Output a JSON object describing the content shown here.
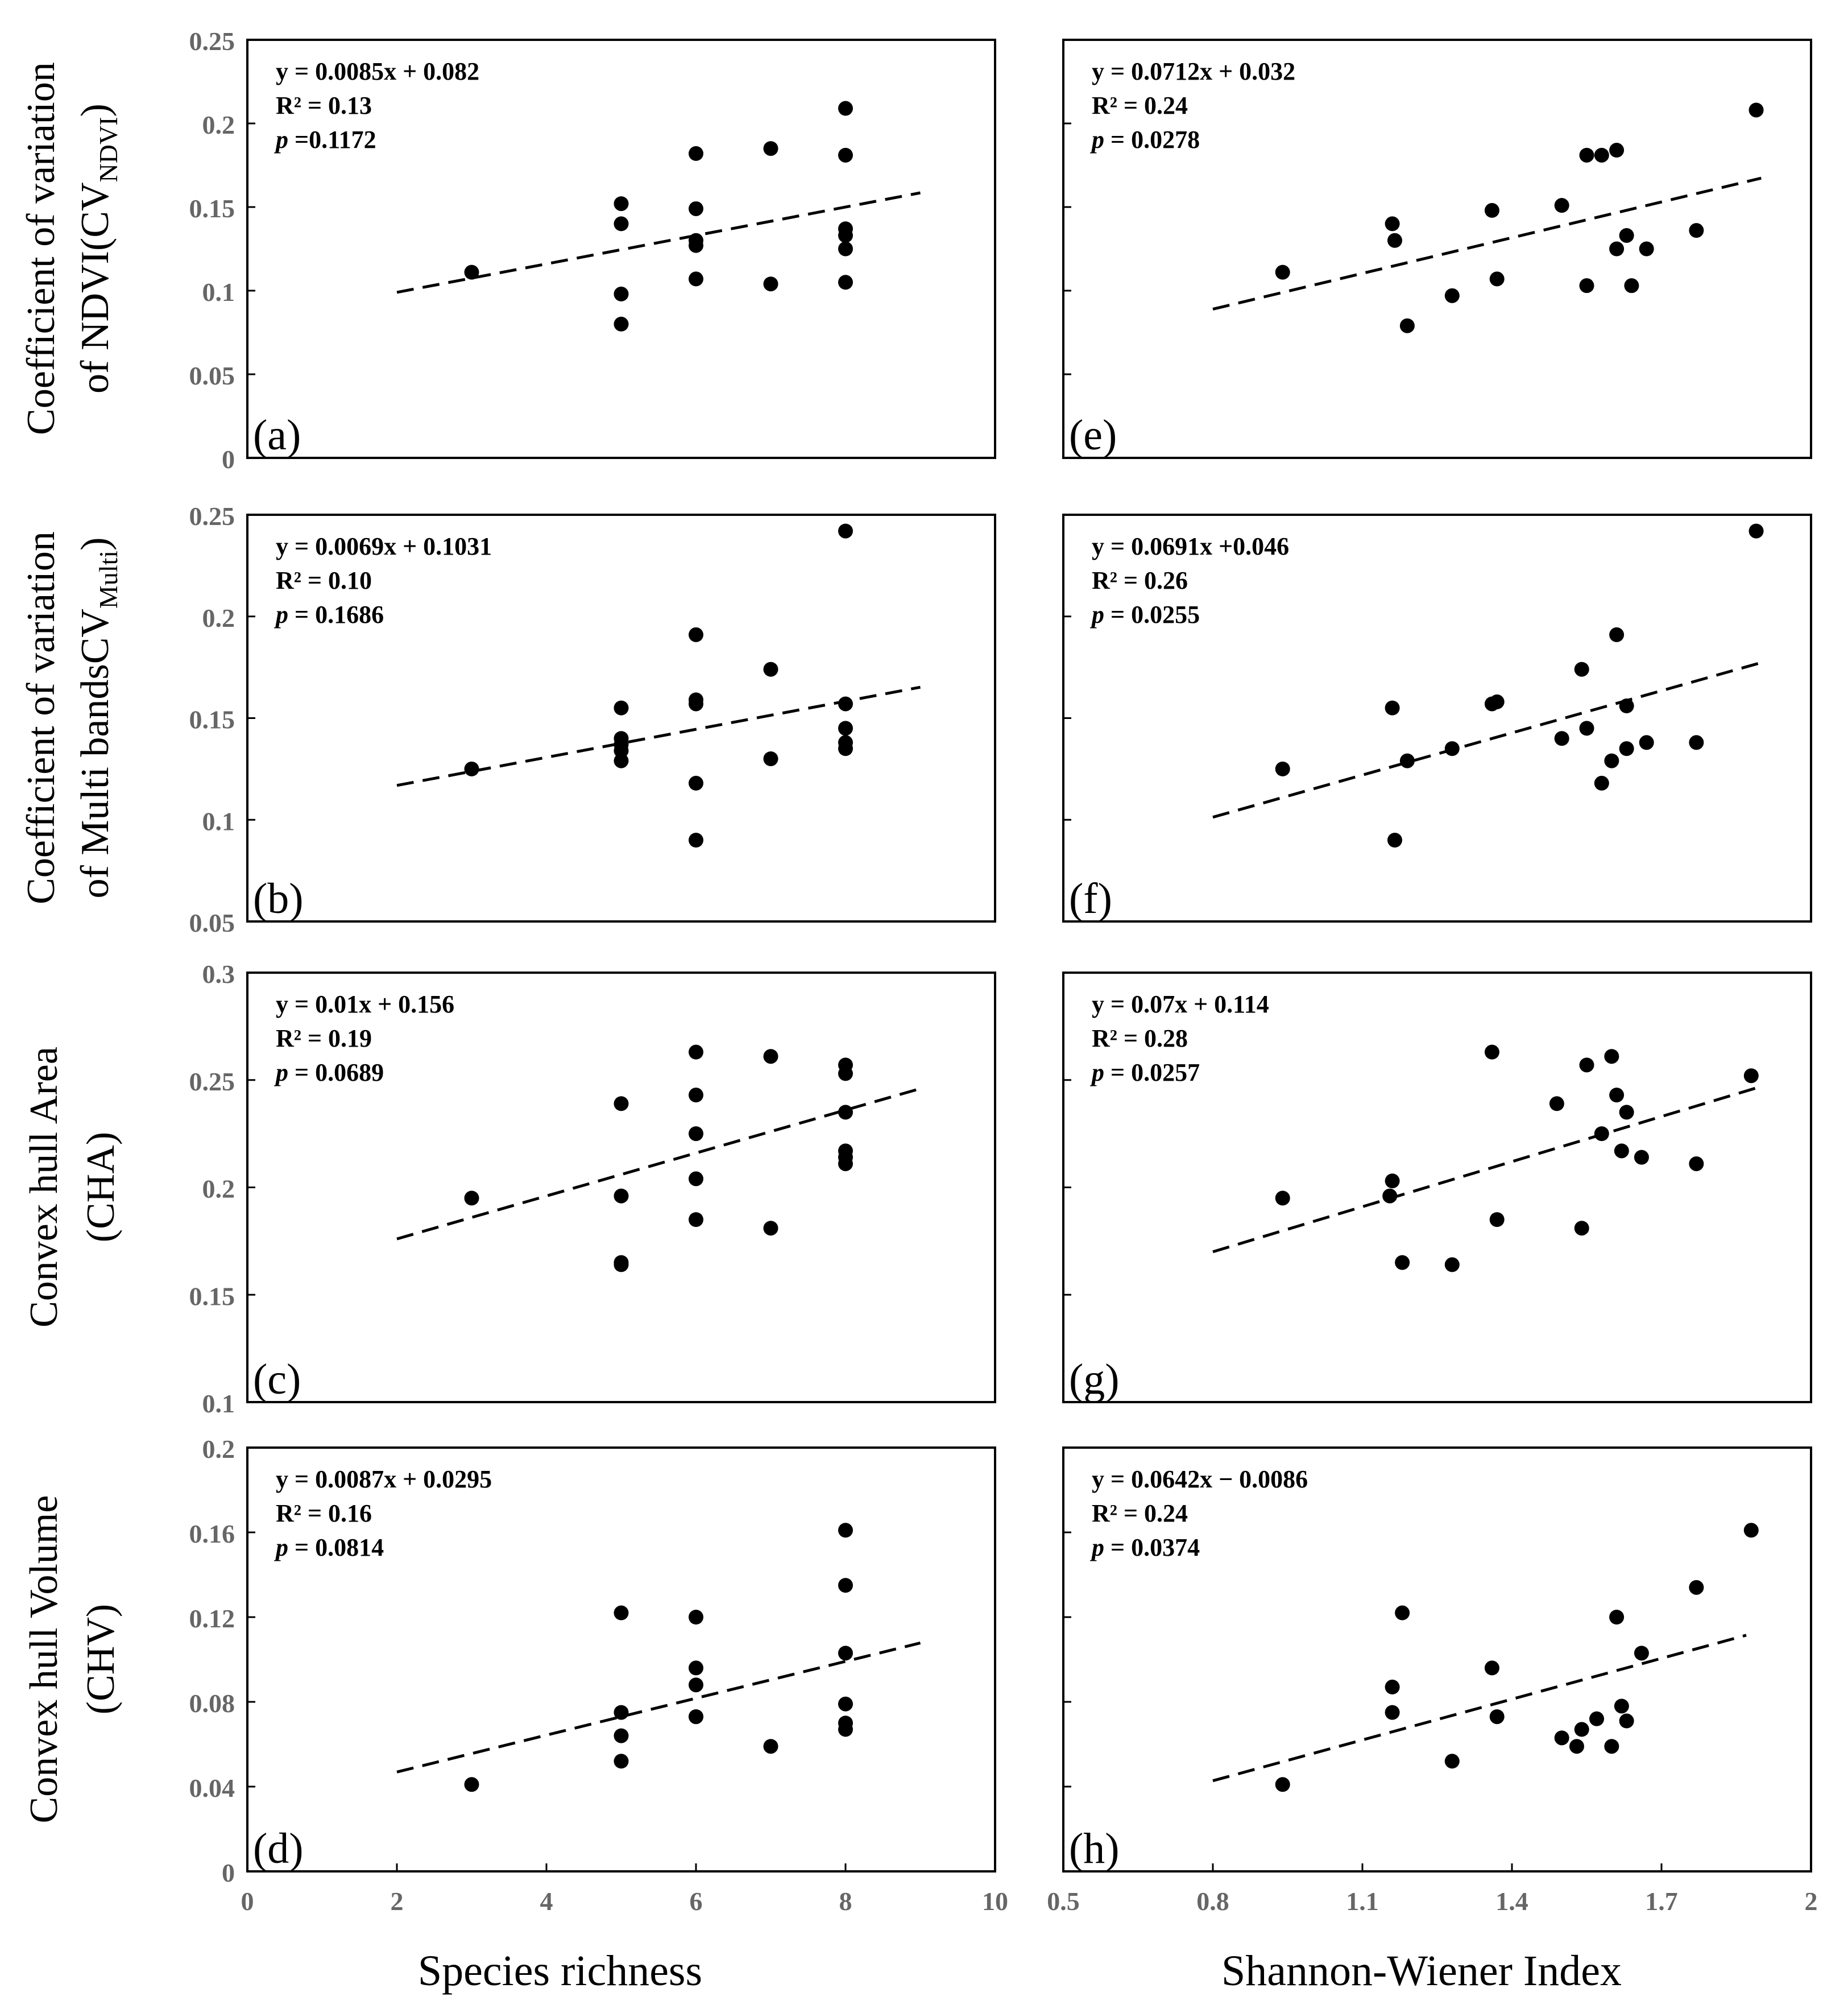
{
  "figure": {
    "xlabels": {
      "left": "Species richness",
      "right": "Shannon-Wiener Index"
    },
    "rows": [
      {
        "ylabel_lines": [
          "Coefficient of variation",
          "of  NDVI(CV",
          "NDVI",
          ")"
        ]
      },
      {
        "ylabel_lines": [
          "Coefficient of variation",
          "of Multi bandsCV",
          "Multi",
          ")"
        ]
      },
      {
        "ylabel_lines": [
          "Convex hull Area",
          "(CHA)"
        ]
      },
      {
        "ylabel_lines": [
          "Convex hull Volume",
          "(CHV)"
        ]
      }
    ]
  },
  "chart_data": [
    {
      "id": "a",
      "type": "scatter",
      "panel_label": "(a)",
      "xlabel": "Species richness",
      "ylabel": "Coefficient of variation of NDVI (CV NDVI)",
      "xlim": [
        0,
        10
      ],
      "ylim": [
        0,
        0.25
      ],
      "yticks": [
        "0",
        "0.05",
        "0.1",
        "0.15",
        "0.2",
        "0.25"
      ],
      "xticks": [],
      "equation": "y = 0.0085x + 0.082",
      "r2": "R² = 0.13",
      "p_label": "p",
      "p_value": " =0.1172",
      "fit": {
        "slope": 0.0085,
        "intercept": 0.082,
        "x_range": [
          2,
          9
        ]
      },
      "points": [
        [
          3,
          0.111
        ],
        [
          5,
          0.152
        ],
        [
          5,
          0.14
        ],
        [
          5,
          0.098
        ],
        [
          5,
          0.08
        ],
        [
          6,
          0.182
        ],
        [
          6,
          0.149
        ],
        [
          6,
          0.13
        ],
        [
          6,
          0.127
        ],
        [
          6,
          0.107
        ],
        [
          7,
          0.185
        ],
        [
          7,
          0.104
        ],
        [
          8,
          0.209
        ],
        [
          8,
          0.181
        ],
        [
          8,
          0.137
        ],
        [
          8,
          0.133
        ],
        [
          8,
          0.125
        ],
        [
          8,
          0.105
        ]
      ]
    },
    {
      "id": "e",
      "type": "scatter",
      "panel_label": "(e)",
      "xlabel": "Shannon-Wiener Index",
      "ylabel": "Coefficient of variation of NDVI (CV NDVI)",
      "xlim": [
        0.5,
        2
      ],
      "ylim": [
        0,
        0.25
      ],
      "yticks": [],
      "xticks": [],
      "equation": "y = 0.0712x + 0.032",
      "r2": "R² = 0.24",
      "p_label": "p",
      "p_value": " = 0.0278",
      "fit": {
        "slope": 0.0712,
        "intercept": 0.032,
        "x_range": [
          0.8,
          1.9
        ]
      },
      "points": [
        [
          0.94,
          0.111
        ],
        [
          1.16,
          0.14
        ],
        [
          1.165,
          0.13
        ],
        [
          1.19,
          0.079
        ],
        [
          1.28,
          0.097
        ],
        [
          1.36,
          0.148
        ],
        [
          1.37,
          0.107
        ],
        [
          1.5,
          0.151
        ],
        [
          1.55,
          0.181
        ],
        [
          1.58,
          0.181
        ],
        [
          1.61,
          0.184
        ],
        [
          1.55,
          0.103
        ],
        [
          1.61,
          0.125
        ],
        [
          1.63,
          0.133
        ],
        [
          1.64,
          0.103
        ],
        [
          1.67,
          0.125
        ],
        [
          1.77,
          0.136
        ],
        [
          1.89,
          0.208
        ]
      ]
    },
    {
      "id": "b",
      "type": "scatter",
      "panel_label": "(b)",
      "xlabel": "Species richness",
      "ylabel": "Coefficient of variation of Multi bands (CV Multi)",
      "xlim": [
        0,
        10
      ],
      "ylim": [
        0.05,
        0.25
      ],
      "yticks": [
        "0.05",
        "0.1",
        "0.15",
        "0.2",
        "0.25"
      ],
      "xticks": [],
      "equation": "y = 0.0069x + 0.1031",
      "r2": "R² = 0.10",
      "p_label": "p",
      "p_value": " = 0.1686",
      "fit": {
        "slope": 0.0069,
        "intercept": 0.1031,
        "x_range": [
          2,
          9
        ]
      },
      "points": [
        [
          3,
          0.125
        ],
        [
          5,
          0.155
        ],
        [
          5,
          0.14
        ],
        [
          5,
          0.137
        ],
        [
          5,
          0.134
        ],
        [
          5,
          0.129
        ],
        [
          6,
          0.191
        ],
        [
          6,
          0.159
        ],
        [
          6,
          0.157
        ],
        [
          6,
          0.118
        ],
        [
          6,
          0.09
        ],
        [
          7,
          0.174
        ],
        [
          7,
          0.13
        ],
        [
          8,
          0.242
        ],
        [
          8,
          0.157
        ],
        [
          8,
          0.145
        ],
        [
          8,
          0.138
        ],
        [
          8,
          0.135
        ]
      ]
    },
    {
      "id": "f",
      "type": "scatter",
      "panel_label": "(f)",
      "xlabel": "Shannon-Wiener Index",
      "ylabel": "Coefficient of variation of Multi bands (CV Multi)",
      "xlim": [
        0.5,
        2
      ],
      "ylim": [
        0.05,
        0.25
      ],
      "yticks": [],
      "xticks": [],
      "equation": "y = 0.0691x +0.046",
      "r2": "R² = 0.26",
      "p_label": "p",
      "p_value": " = 0.0255",
      "fit": {
        "slope": 0.0691,
        "intercept": 0.046,
        "x_range": [
          0.8,
          1.9
        ]
      },
      "points": [
        [
          0.94,
          0.125
        ],
        [
          1.16,
          0.155
        ],
        [
          1.165,
          0.09
        ],
        [
          1.19,
          0.129
        ],
        [
          1.28,
          0.135
        ],
        [
          1.36,
          0.157
        ],
        [
          1.37,
          0.158
        ],
        [
          1.5,
          0.14
        ],
        [
          1.54,
          0.174
        ],
        [
          1.55,
          0.145
        ],
        [
          1.58,
          0.118
        ],
        [
          1.6,
          0.129
        ],
        [
          1.61,
          0.191
        ],
        [
          1.63,
          0.156
        ],
        [
          1.63,
          0.135
        ],
        [
          1.67,
          0.138
        ],
        [
          1.77,
          0.138
        ],
        [
          1.89,
          0.242
        ]
      ]
    },
    {
      "id": "c",
      "type": "scatter",
      "panel_label": "(c)",
      "xlabel": "Species richness",
      "ylabel": "Convex hull Area (CHA)",
      "xlim": [
        0,
        10
      ],
      "ylim": [
        0.1,
        0.3
      ],
      "yticks": [
        "0.1",
        "0.15",
        "0.2",
        "0.25",
        "0.3"
      ],
      "xticks": [],
      "equation": "y = 0.01x + 0.156",
      "r2": "R² = 0.19",
      "p_label": "p",
      "p_value": " = 0.0689",
      "fit": {
        "slope": 0.01,
        "intercept": 0.156,
        "x_range": [
          2,
          9
        ]
      },
      "points": [
        [
          3,
          0.195
        ],
        [
          5,
          0.239
        ],
        [
          5,
          0.196
        ],
        [
          5,
          0.165
        ],
        [
          5,
          0.164
        ],
        [
          6,
          0.263
        ],
        [
          6,
          0.243
        ],
        [
          6,
          0.225
        ],
        [
          6,
          0.204
        ],
        [
          6,
          0.185
        ],
        [
          7,
          0.261
        ],
        [
          7,
          0.181
        ],
        [
          8,
          0.257
        ],
        [
          8,
          0.253
        ],
        [
          8,
          0.235
        ],
        [
          8,
          0.217
        ],
        [
          8,
          0.214
        ],
        [
          8,
          0.211
        ]
      ]
    },
    {
      "id": "g",
      "type": "scatter",
      "panel_label": "(g)",
      "xlabel": "Shannon-Wiener Index",
      "ylabel": "Convex hull Area (CHA)",
      "xlim": [
        0.5,
        2
      ],
      "ylim": [
        0.1,
        0.3
      ],
      "yticks": [],
      "xticks": [],
      "equation": "y = 0.07x + 0.114",
      "r2": "R² = 0.28",
      "p_label": "p",
      "p_value": " = 0.0257",
      "fit": {
        "slope": 0.07,
        "intercept": 0.114,
        "x_range": [
          0.8,
          1.9
        ]
      },
      "points": [
        [
          0.94,
          0.195
        ],
        [
          1.155,
          0.196
        ],
        [
          1.16,
          0.203
        ],
        [
          1.18,
          0.165
        ],
        [
          1.28,
          0.164
        ],
        [
          1.36,
          0.263
        ],
        [
          1.37,
          0.185
        ],
        [
          1.49,
          0.239
        ],
        [
          1.54,
          0.181
        ],
        [
          1.55,
          0.257
        ],
        [
          1.58,
          0.225
        ],
        [
          1.6,
          0.261
        ],
        [
          1.61,
          0.243
        ],
        [
          1.63,
          0.235
        ],
        [
          1.62,
          0.217
        ],
        [
          1.66,
          0.214
        ],
        [
          1.77,
          0.211
        ],
        [
          1.88,
          0.252
        ]
      ]
    },
    {
      "id": "d",
      "type": "scatter",
      "panel_label": "(d)",
      "xlabel": "Species richness",
      "ylabel": "Convex hull Volume (CHV)",
      "xlim": [
        0,
        10
      ],
      "ylim": [
        0,
        0.2
      ],
      "yticks": [
        "0",
        "0.04",
        "0.08",
        "0.12",
        "0.16",
        "0.2"
      ],
      "xticks": [
        "0",
        "2",
        "4",
        "6",
        "8",
        "10"
      ],
      "equation": "y = 0.0087x + 0.0295",
      "r2": "R² = 0.16",
      "p_label": "p",
      "p_value": " = 0.0814",
      "fit": {
        "slope": 0.0087,
        "intercept": 0.0295,
        "x_range": [
          2,
          9
        ]
      },
      "points": [
        [
          3,
          0.041
        ],
        [
          5,
          0.122
        ],
        [
          5,
          0.075
        ],
        [
          5,
          0.064
        ],
        [
          5,
          0.052
        ],
        [
          6,
          0.12
        ],
        [
          6,
          0.096
        ],
        [
          6,
          0.088
        ],
        [
          6,
          0.073
        ],
        [
          6,
          0.073
        ],
        [
          7,
          0.059
        ],
        [
          8,
          0.161
        ],
        [
          8,
          0.135
        ],
        [
          8,
          0.103
        ],
        [
          8,
          0.079
        ],
        [
          8,
          0.07
        ],
        [
          8,
          0.067
        ]
      ]
    },
    {
      "id": "h",
      "type": "scatter",
      "panel_label": "(h)",
      "xlabel": "Shannon-Wiener Index",
      "ylabel": "Convex hull Volume (CHV)",
      "xlim": [
        0.5,
        2
      ],
      "ylim": [
        0,
        0.2
      ],
      "yticks": [],
      "xticks": [
        "0.5",
        "0.8",
        "1.1",
        "1.4",
        "1.7",
        "2"
      ],
      "equation": "y = 0.0642x − 0.0086",
      "r2": "R² = 0.24",
      "p_label": "p",
      "p_value": " = 0.0374",
      "fit": {
        "slope": 0.0642,
        "intercept": -0.0086,
        "x_range": [
          0.8,
          1.87
        ]
      },
      "points": [
        [
          0.94,
          0.041
        ],
        [
          1.16,
          0.087
        ],
        [
          1.16,
          0.075
        ],
        [
          1.18,
          0.122
        ],
        [
          1.28,
          0.052
        ],
        [
          1.36,
          0.096
        ],
        [
          1.37,
          0.073
        ],
        [
          1.5,
          0.063
        ],
        [
          1.53,
          0.059
        ],
        [
          1.54,
          0.067
        ],
        [
          1.57,
          0.072
        ],
        [
          1.6,
          0.059
        ],
        [
          1.61,
          0.12
        ],
        [
          1.62,
          0.078
        ],
        [
          1.63,
          0.071
        ],
        [
          1.66,
          0.103
        ],
        [
          1.77,
          0.134
        ],
        [
          1.88,
          0.161
        ]
      ]
    }
  ]
}
